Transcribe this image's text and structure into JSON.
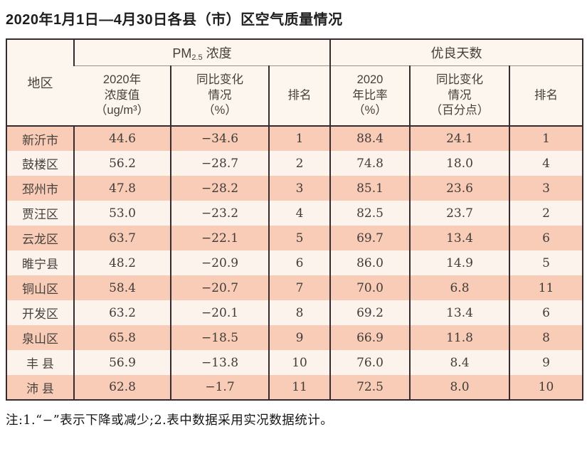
{
  "theme": {
    "border_color": "#362b2e",
    "row_salmon": "#f8ccb7",
    "row_light": "#fdf3ed",
    "header_bg": "#fdf6ef"
  },
  "page": {
    "title": "2020年1月1日—4月30日各县（市）区空气质量情况",
    "note": "注:1.“−”表示下降或减少;2.表中数据采用实况数据统计。"
  },
  "table": {
    "region_header": "地区",
    "group_pm": {
      "prefix": "PM",
      "sub": "2.5",
      "suffix": " 浓度"
    },
    "group_good": "优良天数",
    "sub_headers": {
      "pm_value": "2020年\n浓度值\n（ug/m³）",
      "pm_change": "同比变化\n情况\n（%）",
      "pm_rank": "排名",
      "good_rate": "2020\n年比率\n（%）",
      "good_change": "同比变化\n情况\n（百分点）",
      "good_rank": "排名"
    },
    "rows": [
      {
        "region": "新沂市",
        "pm_value": "44.6",
        "pm_change": "−34.6",
        "pm_rank": "1",
        "good_rate": "88.4",
        "good_change": "24.1",
        "good_rank": "1"
      },
      {
        "region": "鼓楼区",
        "pm_value": "56.2",
        "pm_change": "−28.7",
        "pm_rank": "2",
        "good_rate": "74.8",
        "good_change": "18.0",
        "good_rank": "4"
      },
      {
        "region": "邳州市",
        "pm_value": "47.8",
        "pm_change": "−28.2",
        "pm_rank": "3",
        "good_rate": "85.1",
        "good_change": "23.6",
        "good_rank": "3"
      },
      {
        "region": "贾汪区",
        "pm_value": "53.0",
        "pm_change": "−23.2",
        "pm_rank": "4",
        "good_rate": "82.5",
        "good_change": "23.7",
        "good_rank": "2"
      },
      {
        "region": "云龙区",
        "pm_value": "63.7",
        "pm_change": "−22.1",
        "pm_rank": "5",
        "good_rate": "69.7",
        "good_change": "13.4",
        "good_rank": "6"
      },
      {
        "region": "睢宁县",
        "pm_value": "48.2",
        "pm_change": "−20.9",
        "pm_rank": "6",
        "good_rate": "86.0",
        "good_change": "14.9",
        "good_rank": "5"
      },
      {
        "region": "铜山区",
        "pm_value": "58.4",
        "pm_change": "−20.7",
        "pm_rank": "7",
        "good_rate": "70.0",
        "good_change": "6.8",
        "good_rank": "11"
      },
      {
        "region": "开发区",
        "pm_value": "63.2",
        "pm_change": "−20.1",
        "pm_rank": "8",
        "good_rate": "69.2",
        "good_change": "13.4",
        "good_rank": "6"
      },
      {
        "region": "泉山区",
        "pm_value": "65.8",
        "pm_change": "−18.5",
        "pm_rank": "9",
        "good_rate": "66.9",
        "good_change": "11.8",
        "good_rank": "8"
      },
      {
        "region": "丰 县",
        "pm_value": "56.9",
        "pm_change": "−13.8",
        "pm_rank": "10",
        "good_rate": "76.0",
        "good_change": "8.4",
        "good_rank": "9"
      },
      {
        "region": "沛 县",
        "pm_value": "62.8",
        "pm_change": "−1.7",
        "pm_rank": "11",
        "good_rate": "72.5",
        "good_change": "8.0",
        "good_rank": "10"
      }
    ]
  }
}
